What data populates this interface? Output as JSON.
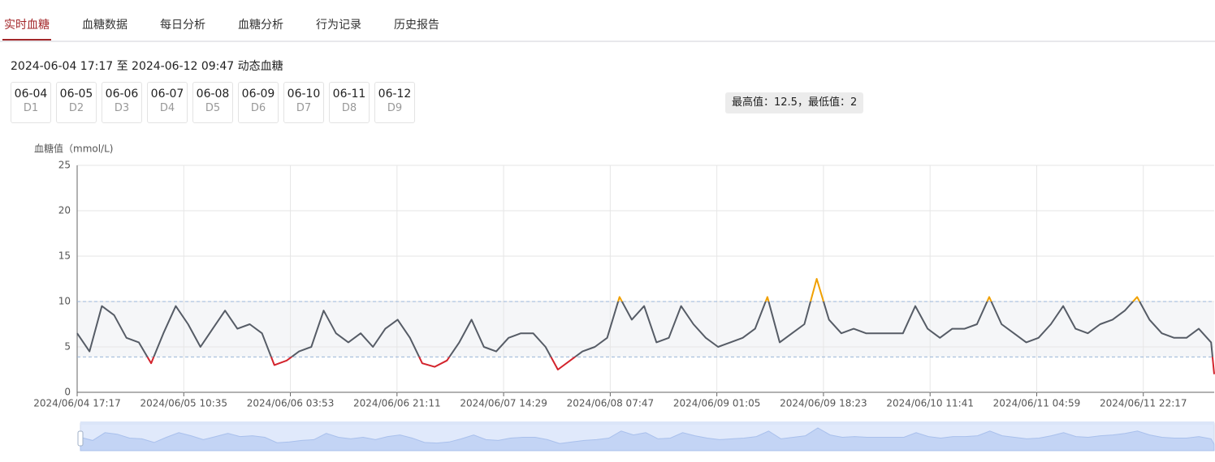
{
  "tabs": [
    "实时血糖",
    "血糖数据",
    "每日分析",
    "血糖分析",
    "行为记录",
    "历史报告"
  ],
  "active_tab": 0,
  "range_text": "2024-06-04 17:17 至 2024-06-12 09:47 动态血糖",
  "days": [
    {
      "date": "06-04",
      "label": "D1"
    },
    {
      "date": "06-05",
      "label": "D2"
    },
    {
      "date": "06-06",
      "label": "D3"
    },
    {
      "date": "06-07",
      "label": "D4"
    },
    {
      "date": "06-08",
      "label": "D5"
    },
    {
      "date": "06-09",
      "label": "D6"
    },
    {
      "date": "06-10",
      "label": "D7"
    },
    {
      "date": "06-11",
      "label": "D8"
    },
    {
      "date": "06-12",
      "label": "D9"
    }
  ],
  "summary": "最高值：12.5，最低值：2",
  "chart_data": {
    "type": "line",
    "y_axis_label": "血糖值（mmol/L)",
    "ylim": [
      0,
      25
    ],
    "yticks": [
      0,
      5,
      10,
      15,
      20,
      25
    ],
    "xlim": [
      "2024/06/04 17:17",
      "2024/06/12 09:47"
    ],
    "xticks": [
      "2024/06/04 17:17",
      "2024/06/05 10:35",
      "2024/06/06 03:53",
      "2024/06/06 21:11",
      "2024/06/07 14:29",
      "2024/06/08 07:47",
      "2024/06/09 01:05",
      "2024/06/09 18:23",
      "2024/06/10 11:41",
      "2024/06/11 04:59",
      "2024/06/11 22:17"
    ],
    "grid": true,
    "target_range": [
      3.9,
      10
    ],
    "color": "#565c66",
    "low_color": "#d3232c",
    "high_color": "#f0a000",
    "band_color": "#f5f6f8",
    "x": [
      "2024/06/04 17:17",
      "2024/06/04 19:17",
      "2024/06/04 21:17",
      "2024/06/04 23:17",
      "2024/06/05 01:17",
      "2024/06/05 03:17",
      "2024/06/05 05:17",
      "2024/06/05 07:17",
      "2024/06/05 09:17",
      "2024/06/05 11:17",
      "2024/06/05 13:17",
      "2024/06/05 15:17",
      "2024/06/05 17:17",
      "2024/06/05 19:17",
      "2024/06/05 21:17",
      "2024/06/05 23:17",
      "2024/06/06 01:17",
      "2024/06/06 03:17",
      "2024/06/06 05:17",
      "2024/06/06 07:17",
      "2024/06/06 09:17",
      "2024/06/06 11:17",
      "2024/06/06 13:17",
      "2024/06/06 15:17",
      "2024/06/06 17:17",
      "2024/06/06 19:17",
      "2024/06/06 21:17",
      "2024/06/06 23:17",
      "2024/06/07 01:17",
      "2024/06/07 03:17",
      "2024/06/07 05:17",
      "2024/06/07 07:17",
      "2024/06/07 09:17",
      "2024/06/07 11:17",
      "2024/06/07 13:17",
      "2024/06/07 15:17",
      "2024/06/07 17:17",
      "2024/06/07 19:17",
      "2024/06/07 21:17",
      "2024/06/07 23:17",
      "2024/06/08 01:17",
      "2024/06/08 03:17",
      "2024/06/08 05:17",
      "2024/06/08 07:17",
      "2024/06/08 09:17",
      "2024/06/08 11:17",
      "2024/06/08 13:17",
      "2024/06/08 15:17",
      "2024/06/08 17:17",
      "2024/06/08 19:17",
      "2024/06/08 21:17",
      "2024/06/08 23:17",
      "2024/06/09 01:17",
      "2024/06/09 03:17",
      "2024/06/09 05:17",
      "2024/06/09 07:17",
      "2024/06/09 09:17",
      "2024/06/09 11:17",
      "2024/06/09 13:17",
      "2024/06/09 15:17",
      "2024/06/09 17:17",
      "2024/06/09 19:17",
      "2024/06/09 21:17",
      "2024/06/09 23:17",
      "2024/06/10 01:17",
      "2024/06/10 03:17",
      "2024/06/10 05:17",
      "2024/06/10 07:17",
      "2024/06/10 09:17",
      "2024/06/10 11:17",
      "2024/06/10 13:17",
      "2024/06/10 15:17",
      "2024/06/10 17:17",
      "2024/06/10 19:17",
      "2024/06/10 21:17",
      "2024/06/10 23:17",
      "2024/06/11 01:17",
      "2024/06/11 03:17",
      "2024/06/11 05:17",
      "2024/06/11 07:17",
      "2024/06/11 09:17",
      "2024/06/11 11:17",
      "2024/06/11 13:17",
      "2024/06/11 15:17",
      "2024/06/11 17:17",
      "2024/06/11 19:17",
      "2024/06/11 21:17",
      "2024/06/11 23:17",
      "2024/06/12 01:17",
      "2024/06/12 03:17",
      "2024/06/12 05:17",
      "2024/06/12 07:17",
      "2024/06/12 09:17",
      "2024/06/12 09:47"
    ],
    "values": [
      6.5,
      4.5,
      9.5,
      8.5,
      6,
      5.5,
      3.2,
      6.5,
      9.5,
      7.5,
      5,
      7,
      9,
      7,
      7.5,
      6.5,
      3,
      3.5,
      4.5,
      5,
      9,
      6.5,
      5.5,
      6.5,
      5,
      7,
      8,
      6,
      3.2,
      2.8,
      3.5,
      5.5,
      8,
      5,
      4.5,
      6,
      6.5,
      6.5,
      5,
      2.5,
      3.5,
      4.5,
      5,
      6,
      10.5,
      8,
      9.5,
      5.5,
      6,
      9.5,
      7.5,
      6,
      5,
      5.5,
      6,
      7,
      10.5,
      5.5,
      6.5,
      7.5,
      12.5,
      8,
      6.5,
      7,
      6.5,
      6.5,
      6.5,
      6.5,
      9.5,
      7,
      6,
      7,
      7,
      7.5,
      10.5,
      7.5,
      6.5,
      5.5,
      6,
      7.5,
      9.5,
      7,
      6.5,
      7.5,
      8,
      9,
      10.5,
      8,
      6.5,
      6,
      6,
      7,
      5.5,
      2
    ]
  }
}
